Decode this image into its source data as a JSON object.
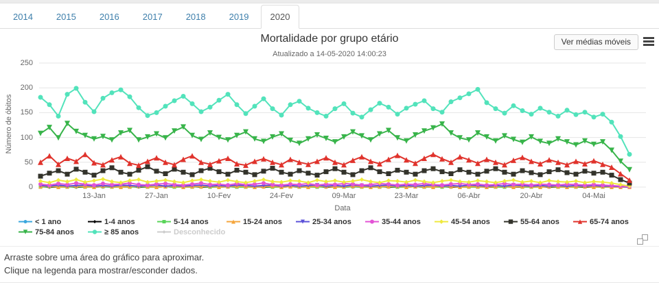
{
  "page": {
    "tabs": [
      {
        "label": "2014",
        "active": false
      },
      {
        "label": "2015",
        "active": false
      },
      {
        "label": "2016",
        "active": false
      },
      {
        "label": "2017",
        "active": false
      },
      {
        "label": "2018",
        "active": false
      },
      {
        "label": "2019",
        "active": false
      },
      {
        "label": "2020",
        "active": true
      }
    ],
    "toolbar": {
      "moving_avg_button_label": "Ver médias móveis"
    },
    "instructions": [
      "Arraste sobre uma área do gráfico para aproximar.",
      "Clique na legenda para mostrar/esconder dados."
    ],
    "colors": {
      "tab_link": "#3e7fab",
      "grid": "#e6e6e6",
      "axis_text": "#666666",
      "title_text": "#333333"
    }
  },
  "chart_data": {
    "type": "line",
    "title": "Mortalidade por grupo etário",
    "subtitle": "Atualizado a 14-05-2020 14:00:23",
    "xlabel": "Data",
    "ylabel": "Número de óbitos",
    "ylim": [
      0,
      250
    ],
    "y_ticks": [
      0,
      50,
      100,
      150,
      200,
      250
    ],
    "grid": true,
    "legend_position": "bottom",
    "x_unit": "dias desde 01-Jan-2020, amostragem de 2 em 2 dias",
    "x_step_days": 2,
    "x_ticks": [
      {
        "label": "13-Jan",
        "day": 12
      },
      {
        "label": "27-Jan",
        "day": 26
      },
      {
        "label": "10-Fev",
        "day": 40
      },
      {
        "label": "24-Fev",
        "day": 54
      },
      {
        "label": "09-Mar",
        "day": 68
      },
      {
        "label": "23-Mar",
        "day": 82
      },
      {
        "label": "06-Abr",
        "day": 96
      },
      {
        "label": "20-Abr",
        "day": 110
      },
      {
        "label": "04-Mai",
        "day": 124
      }
    ],
    "series": [
      {
        "name": "< 1 ano",
        "slug": "lt-1-ano",
        "color": "#3aa7dd",
        "marker": "circle",
        "size": 2.5,
        "hidden": false,
        "values": [
          1,
          0,
          2,
          1,
          0,
          1,
          2,
          0,
          1,
          1,
          0,
          2,
          1,
          0,
          1,
          0,
          2,
          1,
          0,
          1,
          1,
          0,
          2,
          1,
          0,
          1,
          0,
          1,
          2,
          0,
          1,
          1,
          0,
          1,
          2,
          0,
          1,
          0,
          1,
          1,
          0,
          2,
          1,
          0,
          1,
          1,
          0,
          1,
          2,
          0,
          1,
          0,
          1,
          1,
          0,
          2,
          1,
          0,
          1,
          0,
          1,
          1,
          0,
          1,
          0,
          0,
          0
        ]
      },
      {
        "name": "1-4 anos",
        "slug": "1-4-anos",
        "color": "#000000",
        "marker": "diamond",
        "size": 2.5,
        "hidden": false,
        "values": [
          1,
          0,
          0,
          1,
          0,
          0,
          0,
          1,
          0,
          0,
          1,
          0,
          0,
          0,
          1,
          0,
          0,
          1,
          0,
          0,
          0,
          1,
          0,
          0,
          1,
          0,
          0,
          0,
          1,
          0,
          0,
          1,
          0,
          0,
          0,
          1,
          0,
          0,
          1,
          0,
          0,
          0,
          1,
          0,
          0,
          1,
          0,
          0,
          0,
          1,
          0,
          0,
          1,
          0,
          0,
          0,
          1,
          0,
          0,
          1,
          0,
          0,
          0,
          1,
          0,
          0,
          0
        ]
      },
      {
        "name": "5-14 anos",
        "slug": "5-14-anos",
        "color": "#5ad45a",
        "marker": "square",
        "size": 2.5,
        "hidden": false,
        "values": [
          0,
          1,
          0,
          0,
          1,
          0,
          0,
          1,
          0,
          0,
          0,
          1,
          0,
          0,
          1,
          0,
          0,
          0,
          1,
          0,
          0,
          1,
          0,
          0,
          0,
          1,
          0,
          0,
          1,
          0,
          0,
          0,
          1,
          0,
          0,
          1,
          0,
          0,
          0,
          1,
          0,
          0,
          1,
          0,
          0,
          0,
          1,
          0,
          0,
          0,
          1,
          0,
          0,
          1,
          0,
          0,
          0,
          1,
          0,
          0,
          0,
          1,
          0,
          0,
          0,
          0,
          0
        ]
      },
      {
        "name": "15-24 anos",
        "slug": "15-24-anos",
        "color": "#f5a63c",
        "marker": "triangle-up",
        "size": 3,
        "hidden": false,
        "values": [
          1,
          2,
          0,
          1,
          2,
          1,
          0,
          2,
          1,
          0,
          1,
          2,
          1,
          0,
          1,
          2,
          0,
          1,
          1,
          2,
          0,
          1,
          2,
          1,
          0,
          1,
          2,
          0,
          1,
          1,
          0,
          2,
          1,
          0,
          1,
          2,
          1,
          0,
          1,
          1,
          2,
          0,
          1,
          1,
          0,
          2,
          1,
          0,
          1,
          1,
          0,
          1,
          2,
          0,
          1,
          1,
          0,
          1,
          1,
          0,
          1,
          1,
          0,
          1,
          0,
          0,
          0
        ]
      },
      {
        "name": "25-34 anos",
        "slug": "25-34-anos",
        "color": "#5b51d8",
        "marker": "triangle-down",
        "size": 3,
        "hidden": false,
        "values": [
          3,
          2,
          4,
          2,
          3,
          4,
          2,
          3,
          2,
          4,
          3,
          2,
          3,
          4,
          2,
          3,
          2,
          3,
          4,
          2,
          3,
          2,
          4,
          3,
          2,
          3,
          4,
          2,
          3,
          2,
          3,
          4,
          2,
          3,
          2,
          4,
          3,
          2,
          3,
          4,
          2,
          3,
          2,
          3,
          4,
          2,
          3,
          2,
          4,
          3,
          2,
          3,
          2,
          4,
          3,
          2,
          3,
          2,
          3,
          2,
          3,
          2,
          3,
          2,
          2,
          1,
          0
        ]
      },
      {
        "name": "35-44 anos",
        "slug": "35-44-anos",
        "color": "#e353d6",
        "marker": "circle",
        "size": 3,
        "hidden": false,
        "values": [
          6,
          4,
          7,
          5,
          8,
          6,
          4,
          7,
          5,
          6,
          8,
          5,
          4,
          6,
          7,
          5,
          4,
          6,
          8,
          5,
          6,
          4,
          7,
          5,
          6,
          8,
          5,
          4,
          6,
          5,
          7,
          4,
          6,
          5,
          7,
          6,
          4,
          5,
          7,
          6,
          4,
          6,
          5,
          7,
          5,
          4,
          6,
          7,
          5,
          6,
          4,
          5,
          7,
          5,
          6,
          4,
          6,
          5,
          4,
          6,
          5,
          4,
          5,
          4,
          3,
          2,
          1
        ]
      },
      {
        "name": "45-54 anos",
        "slug": "45-54-anos",
        "color": "#efe93f",
        "marker": "diamond",
        "size": 3.2,
        "hidden": false,
        "values": [
          12,
          9,
          14,
          11,
          15,
          10,
          13,
          16,
          11,
          9,
          13,
          15,
          10,
          12,
          14,
          11,
          9,
          13,
          15,
          12,
          10,
          14,
          11,
          9,
          12,
          15,
          11,
          10,
          13,
          12,
          9,
          14,
          11,
          13,
          10,
          12,
          15,
          11,
          9,
          13,
          12,
          10,
          14,
          11,
          9,
          12,
          14,
          11,
          10,
          13,
          11,
          9,
          12,
          14,
          10,
          12,
          9,
          13,
          11,
          10,
          12,
          9,
          11,
          10,
          8,
          5,
          2
        ]
      },
      {
        "name": "55-64 anos",
        "slug": "55-64-anos",
        "color": "#33332b",
        "marker": "square",
        "size": 3.5,
        "hidden": false,
        "values": [
          22,
          28,
          33,
          26,
          36,
          30,
          24,
          33,
          39,
          30,
          26,
          34,
          41,
          32,
          27,
          36,
          30,
          25,
          33,
          38,
          31,
          26,
          34,
          30,
          25,
          32,
          38,
          30,
          26,
          33,
          28,
          24,
          31,
          37,
          30,
          25,
          33,
          39,
          31,
          27,
          34,
          30,
          26,
          33,
          37,
          31,
          27,
          35,
          30,
          26,
          32,
          37,
          30,
          26,
          33,
          29,
          25,
          31,
          35,
          29,
          26,
          32,
          28,
          30,
          24,
          15,
          8
        ]
      },
      {
        "name": "65-74 anos",
        "slug": "65-74-anos",
        "color": "#e0332c",
        "marker": "triangle-up",
        "size": 4,
        "hidden": false,
        "values": [
          50,
          63,
          46,
          58,
          52,
          66,
          49,
          45,
          55,
          61,
          48,
          44,
          52,
          59,
          50,
          45,
          56,
          63,
          50,
          46,
          53,
          58,
          47,
          44,
          52,
          57,
          50,
          45,
          56,
          50,
          46,
          52,
          59,
          50,
          45,
          54,
          61,
          52,
          47,
          56,
          64,
          55,
          48,
          58,
          66,
          57,
          50,
          61,
          55,
          48,
          56,
          50,
          45,
          54,
          60,
          52,
          47,
          55,
          50,
          45,
          52,
          47,
          53,
          46,
          40,
          27,
          14
        ]
      },
      {
        "name": "75-84 anos",
        "slug": "75-84-anos",
        "color": "#38b44a",
        "marker": "triangle-down",
        "size": 4,
        "hidden": false,
        "values": [
          108,
          120,
          99,
          128,
          112,
          104,
          97,
          102,
          95,
          109,
          114,
          95,
          101,
          107,
          99,
          113,
          121,
          104,
          96,
          109,
          100,
          95,
          104,
          111,
          97,
          92,
          101,
          107,
          94,
          88,
          97,
          105,
          98,
          91,
          101,
          111,
          103,
          95,
          107,
          114,
          99,
          93,
          105,
          113,
          119,
          127,
          109,
          99,
          95,
          109,
          101,
          93,
          103,
          96,
          90,
          101,
          92,
          88,
          97,
          91,
          85,
          93,
          86,
          91,
          74,
          52,
          35
        ]
      },
      {
        "name": "≥ 85 anos",
        "slug": "ge-85-anos",
        "color": "#52e3bb",
        "marker": "circle",
        "size": 3.5,
        "hidden": false,
        "values": [
          181,
          166,
          143,
          187,
          199,
          171,
          152,
          179,
          190,
          196,
          182,
          160,
          144,
          150,
          163,
          174,
          183,
          168,
          152,
          161,
          175,
          187,
          166,
          148,
          163,
          178,
          158,
          145,
          166,
          173,
          159,
          150,
          143,
          158,
          168,
          149,
          141,
          156,
          169,
          161,
          147,
          159,
          167,
          174,
          158,
          151,
          172,
          180,
          188,
          197,
          170,
          158,
          149,
          164,
          154,
          147,
          159,
          151,
          143,
          155,
          146,
          151,
          141,
          147,
          131,
          102,
          66
        ]
      },
      {
        "name": "Desconhecido",
        "slug": "desconhecido",
        "color": "#cccccc",
        "marker": "diamond",
        "size": 2.5,
        "hidden": true,
        "values": []
      }
    ]
  }
}
